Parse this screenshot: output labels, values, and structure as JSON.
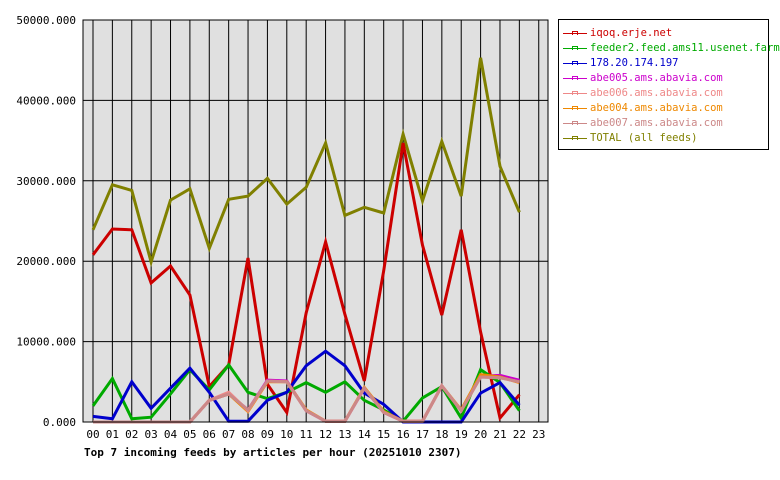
{
  "chart_data": {
    "type": "line",
    "title": "Top 7 incoming feeds by articles per hour (20251010 2307)",
    "xlabel": "",
    "ylabel": "",
    "ylim": [
      0,
      50000
    ],
    "grid": true,
    "legend_position": "right",
    "y_ticks": [
      "0.000",
      "10000.000",
      "20000.000",
      "30000.000",
      "40000.000",
      "50000.000"
    ],
    "x": [
      "00",
      "01",
      "02",
      "03",
      "04",
      "05",
      "06",
      "07",
      "08",
      "09",
      "10",
      "11",
      "12",
      "13",
      "14",
      "15",
      "16",
      "17",
      "18",
      "19",
      "20",
      "21",
      "22",
      "23"
    ],
    "series": [
      {
        "name": "iqoq.erje.net",
        "color": "#cc0000",
        "values": [
          20800,
          24000,
          23900,
          17300,
          19400,
          15800,
          4400,
          7100,
          20400,
          4700,
          1200,
          13600,
          22400,
          13400,
          5100,
          18800,
          34700,
          22000,
          13300,
          23900,
          11200,
          500,
          3400
        ]
      },
      {
        "name": "feeder2.feed.ams11.usenet.farm",
        "color": "#00aa00",
        "values": [
          2000,
          5400,
          400,
          600,
          3500,
          6500,
          4000,
          7100,
          3700,
          2900,
          3700,
          4900,
          3700,
          5000,
          2700,
          1500,
          100,
          3000,
          4400,
          500,
          6500,
          4900,
          1400
        ]
      },
      {
        "name": "178.20.174.197",
        "color": "#0000cc",
        "values": [
          700,
          400,
          5000,
          1700,
          4200,
          6700,
          3700,
          100,
          100,
          2700,
          3700,
          7000,
          8800,
          7000,
          3600,
          2200,
          0,
          0,
          0,
          0,
          3600,
          4900,
          2100
        ]
      },
      {
        "name": "abe005.ams.abavia.com",
        "color": "#cc00cc",
        "values": [
          0,
          0,
          0,
          0,
          0,
          0,
          2700,
          3500,
          1500,
          5200,
          5100,
          1400,
          100,
          100,
          4200,
          1200,
          100,
          100,
          4500,
          1400,
          5700,
          5800,
          5200
        ]
      },
      {
        "name": "abe006.ams.abavia.com",
        "color": "#ee8888",
        "values": [
          0,
          0,
          0,
          0,
          0,
          0,
          2700,
          3700,
          1400,
          5100,
          5000,
          1400,
          100,
          100,
          4200,
          1200,
          100,
          100,
          4500,
          1400,
          5600,
          5500,
          5000
        ]
      },
      {
        "name": "abe004.ams.abavia.com",
        "color": "#ee8800",
        "values": [
          0,
          0,
          0,
          0,
          0,
          0,
          2700,
          3500,
          1300,
          5000,
          5000,
          1500,
          100,
          100,
          4300,
          1300,
          100,
          100,
          4500,
          1500,
          5900,
          5600,
          4900
        ]
      },
      {
        "name": "abe007.ams.abavia.com",
        "color": "#cc8888",
        "values": [
          0,
          0,
          0,
          0,
          0,
          0,
          2700,
          3500,
          1500,
          5100,
          5000,
          1400,
          100,
          100,
          4200,
          1200,
          100,
          100,
          4500,
          1400,
          5600,
          5500,
          5000
        ]
      },
      {
        "name": "TOTAL (all feeds)",
        "color": "#808000",
        "values": [
          23900,
          29500,
          28800,
          19900,
          27600,
          29000,
          21600,
          27700,
          28100,
          30300,
          27100,
          29200,
          34700,
          25700,
          26700,
          26000,
          35800,
          27500,
          34900,
          28100,
          45300,
          31800,
          26100
        ]
      }
    ]
  },
  "legend": {
    "items": [
      {
        "label": "iqoq.erje.net",
        "color": "#cc0000"
      },
      {
        "label": "feeder2.feed.ams11.usenet.farm",
        "color": "#00aa00"
      },
      {
        "label": "178.20.174.197",
        "color": "#0000cc"
      },
      {
        "label": "abe005.ams.abavia.com",
        "color": "#cc00cc"
      },
      {
        "label": "abe006.ams.abavia.com",
        "color": "#ee8888"
      },
      {
        "label": "abe004.ams.abavia.com",
        "color": "#ee8800"
      },
      {
        "label": "abe007.ams.abavia.com",
        "color": "#cc8888"
      },
      {
        "label": "TOTAL (all feeds)",
        "color": "#808000"
      }
    ]
  },
  "colors": {
    "plot_background": "#e0e0e0",
    "grid": "#000000",
    "page_background": "#ffffff"
  }
}
